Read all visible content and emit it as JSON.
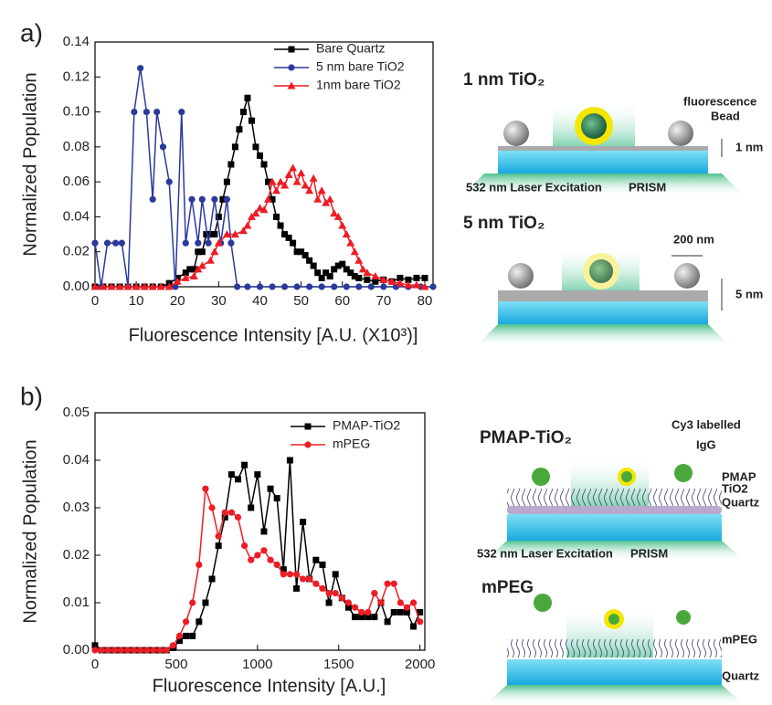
{
  "chart_data": [
    {
      "type": "line",
      "label": "a)",
      "xlabel": "Fluorescence Intensity [A.U. (X10³)]",
      "ylabel": "Normalized Population",
      "xlim": [
        0,
        82
      ],
      "ylim": [
        0,
        0.14
      ],
      "xticks": [
        0,
        10,
        20,
        30,
        40,
        50,
        60,
        70,
        80
      ],
      "yticks": [
        {
          "value": 0,
          "label": "0.00"
        },
        0.02,
        0.04,
        0.06,
        0.08,
        {
          "value": 0.1,
          "label": "0.10"
        },
        0.12,
        0.14
      ],
      "legend_position": "upper right",
      "series": [
        {
          "name": "Bare Quartz",
          "color": "#000000",
          "marker": "square",
          "x": [
            0,
            2,
            4,
            6,
            8,
            10,
            12,
            14,
            16,
            18,
            20,
            22,
            23,
            24,
            25,
            26,
            27,
            28,
            29,
            30,
            31,
            32,
            33,
            34,
            35,
            36,
            37,
            38,
            39,
            40,
            41,
            42,
            43,
            44,
            45,
            46,
            47,
            48,
            49,
            50,
            51,
            52,
            53,
            54,
            55,
            56,
            57,
            58,
            59,
            60,
            61,
            62,
            63,
            64,
            66,
            68,
            70,
            72,
            74,
            76,
            78,
            80
          ],
          "values": [
            0,
            0,
            0,
            0,
            0,
            0,
            0,
            0,
            0,
            0.002,
            0.005,
            0.008,
            0.01,
            0.01,
            0.02,
            0.02,
            0.03,
            0.03,
            0.03,
            0.04,
            0.05,
            0.06,
            0.07,
            0.08,
            0.09,
            0.1,
            0.108,
            0.095,
            0.08,
            0.075,
            0.07,
            0.06,
            0.05,
            0.04,
            0.035,
            0.03,
            0.028,
            0.025,
            0.02,
            0.02,
            0.018,
            0.015,
            0.012,
            0.008,
            0.005,
            0.008,
            0.006,
            0.01,
            0.012,
            0.013,
            0.01,
            0.008,
            0.006,
            0.005,
            0.004,
            0.003,
            0.004,
            0.003,
            0.005,
            0.004,
            0.005,
            0.005
          ]
        },
        {
          "name": "5 nm bare TiO2",
          "color": "#2b3a9a",
          "marker": "circle",
          "x": [
            0,
            1.5,
            3,
            5,
            6.5,
            8,
            9.5,
            11,
            12.5,
            14,
            15,
            16.5,
            18,
            19.5,
            21,
            22,
            23.5,
            25,
            26,
            27.5,
            29,
            30.5,
            32,
            33,
            34.5,
            37,
            40,
            43,
            46,
            49,
            52,
            55,
            58,
            61,
            64,
            67,
            70,
            73,
            76,
            79,
            82
          ],
          "values": [
            0.025,
            0,
            0.025,
            0.025,
            0.025,
            0,
            0.1,
            0.125,
            0.1,
            0.05,
            0.1,
            0.08,
            0.06,
            0,
            0.1,
            0.025,
            0.05,
            0.025,
            0.05,
            0.025,
            0.05,
            0.025,
            0.05,
            0.025,
            0,
            0,
            0,
            0,
            0,
            0,
            0,
            0,
            0,
            0,
            0,
            0,
            0,
            0,
            0,
            0,
            0
          ]
        },
        {
          "name": "1nm bare TiO2",
          "color": "#ee1c24",
          "marker": "triangle",
          "x": [
            0,
            2,
            4,
            6,
            8,
            10,
            12,
            14,
            16,
            18,
            20,
            22,
            24,
            25,
            26,
            28,
            29,
            30,
            32,
            34,
            36,
            37,
            38,
            39,
            40,
            41,
            42,
            43,
            44,
            45,
            46,
            47,
            48,
            49,
            50,
            51,
            52,
            53,
            54,
            55,
            56,
            57,
            58,
            59,
            60,
            61,
            62,
            63,
            64,
            65,
            66,
            68,
            70,
            72,
            74,
            76,
            78,
            80
          ],
          "values": [
            0,
            0,
            0,
            0,
            0,
            0,
            0,
            0,
            0,
            0,
            0.003,
            0.005,
            0.006,
            0.01,
            0.012,
            0.015,
            0.02,
            0.025,
            0.03,
            0.03,
            0.032,
            0.035,
            0.04,
            0.042,
            0.045,
            0.044,
            0.05,
            0.06,
            0.055,
            0.06,
            0.058,
            0.064,
            0.068,
            0.06,
            0.065,
            0.058,
            0.055,
            0.062,
            0.05,
            0.055,
            0.048,
            0.05,
            0.042,
            0.04,
            0.035,
            0.03,
            0.025,
            0.02,
            0.015,
            0.01,
            0.008,
            0.006,
            0.004,
            0.003,
            0.002,
            0.001,
            0.001,
            0
          ]
        }
      ]
    },
    {
      "type": "line",
      "label": "b)",
      "xlabel": "Fluorescence Intensity [A.U.]",
      "ylabel": "Normalized Population",
      "xlim": [
        0,
        2030
      ],
      "ylim": [
        0,
        0.05
      ],
      "xticks": [
        0,
        500,
        1000,
        1500,
        2000
      ],
      "yticks": [
        {
          "value": 0,
          "label": "0.00"
        },
        0.01,
        0.02,
        0.03,
        0.04,
        0.05
      ],
      "legend_position": "upper right",
      "series": [
        {
          "name": "PMAP-TiO2",
          "color": "#000000",
          "marker": "square",
          "x": [
            0,
            40,
            80,
            120,
            160,
            200,
            240,
            280,
            320,
            360,
            400,
            440,
            480,
            520,
            560,
            600,
            640,
            680,
            720,
            760,
            800,
            840,
            880,
            920,
            960,
            1000,
            1040,
            1080,
            1120,
            1160,
            1200,
            1240,
            1280,
            1320,
            1360,
            1400,
            1440,
            1480,
            1520,
            1560,
            1600,
            1640,
            1680,
            1720,
            1760,
            1800,
            1840,
            1880,
            1920,
            1960,
            2000
          ],
          "values": [
            0.001,
            0,
            0,
            0,
            0,
            0,
            0,
            0,
            0,
            0,
            0,
            0,
            0.0005,
            0.002,
            0.003,
            0.003,
            0.006,
            0.01,
            0.015,
            0.022,
            0.028,
            0.037,
            0.036,
            0.039,
            0.03,
            0.037,
            0.025,
            0.034,
            0.032,
            0.017,
            0.04,
            0.013,
            0.027,
            0.015,
            0.019,
            0.018,
            0.01,
            0.016,
            0.011,
            0.009,
            0.007,
            0.007,
            0.007,
            0.007,
            0.01,
            0.006,
            0.008,
            0.008,
            0.008,
            0.005,
            0.008
          ]
        },
        {
          "name": "mPEG",
          "color": "#ee1c24",
          "marker": "circle",
          "x": [
            0,
            40,
            80,
            120,
            160,
            200,
            240,
            280,
            320,
            360,
            400,
            440,
            480,
            520,
            560,
            600,
            640,
            680,
            720,
            760,
            800,
            840,
            880,
            920,
            960,
            1000,
            1040,
            1080,
            1120,
            1160,
            1200,
            1240,
            1280,
            1320,
            1360,
            1400,
            1440,
            1480,
            1520,
            1560,
            1600,
            1640,
            1680,
            1720,
            1760,
            1800,
            1840,
            1880,
            1920,
            1960,
            2000
          ],
          "values": [
            0,
            0,
            0,
            0,
            0,
            0,
            0,
            0,
            0,
            0,
            0,
            0,
            0.001,
            0.003,
            0.006,
            0.01,
            0.018,
            0.034,
            0.03,
            0.024,
            0.029,
            0.029,
            0.028,
            0.022,
            0.019,
            0.02,
            0.021,
            0.019,
            0.018,
            0.016,
            0.016,
            0.016,
            0.015,
            0.015,
            0.014,
            0.013,
            0.012,
            0.012,
            0.011,
            0.01,
            0.009,
            0.008,
            0.008,
            0.012,
            0.01,
            0.014,
            0.014,
            0.01,
            0.009,
            0.01,
            0.006
          ]
        }
      ]
    }
  ],
  "diagrams": [
    {
      "title": "1 nm TiO₂",
      "labels": [
        "fluorescence",
        "Bead",
        "1 nm",
        "532 nm Laser Excitation",
        "PRISM"
      ]
    },
    {
      "title": "5 nm TiO₂",
      "labels": [
        "200 nm",
        "5 nm"
      ]
    },
    {
      "title": "PMAP-TiO₂",
      "labels": [
        "Cy3 labelled",
        "IgG",
        "PMAP",
        "TiO2",
        "Quartz",
        "532 nm Laser Excitation",
        "PRISM"
      ]
    },
    {
      "title": "mPEG",
      "labels": [
        "mPEG",
        "Quartz"
      ]
    }
  ]
}
